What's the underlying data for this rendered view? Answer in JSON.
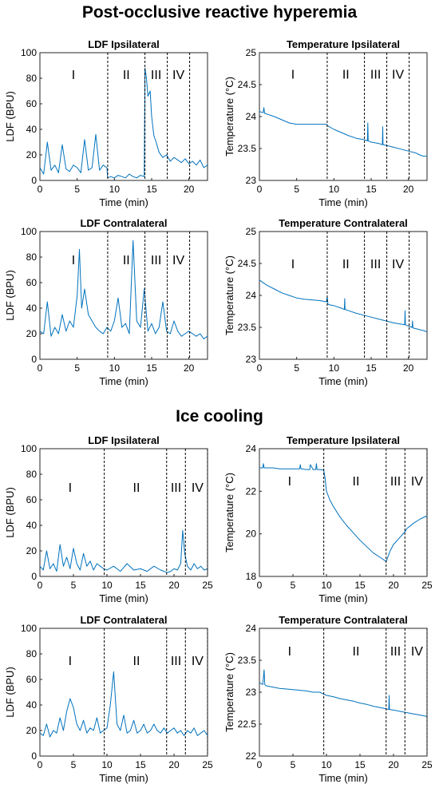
{
  "sections": [
    {
      "title": "Post-occlusive reactive hyperemia"
    },
    {
      "title": "Ice cooling"
    }
  ],
  "colors": {
    "trace": "#0072BD",
    "divider": "#000000",
    "axes": "#262626"
  },
  "chart_data": [
    {
      "type": "line",
      "title": "LDF Ipsilateral",
      "xlabel": "Time (min)",
      "ylabel": "LDF (BPU)",
      "xlim": [
        0,
        22.5
      ],
      "ylim": [
        0,
        100
      ],
      "xticks": [
        0,
        5,
        10,
        15,
        20
      ],
      "yticks": [
        0,
        20,
        40,
        60,
        80,
        100
      ],
      "phase_boundaries": [
        9.1,
        14.1,
        17.1,
        20.1
      ],
      "phase_labels": [
        {
          "text": "I",
          "x": 4.5
        },
        {
          "text": "II",
          "x": 11.6
        },
        {
          "text": "III",
          "x": 15.6
        },
        {
          "text": "IV",
          "x": 18.6
        }
      ],
      "phase_label_y": 83,
      "series": [
        {
          "x": [
            0,
            0.5,
            1,
            1.5,
            2,
            2.5,
            3,
            3.5,
            4,
            4.5,
            5,
            5.5,
            6,
            6.5,
            7,
            7.5,
            8,
            8.5,
            9,
            9.1,
            9.5,
            10,
            10.5,
            11,
            11.5,
            12,
            12.5,
            13,
            13.5,
            14,
            14.1,
            14.3,
            14.5,
            14.8,
            15,
            15.3,
            15.6,
            16,
            16.5,
            17,
            17.5,
            18,
            18.5,
            19,
            19.5,
            20,
            20.5,
            21,
            21.5,
            22,
            22.5
          ],
          "y": [
            10,
            5,
            30,
            8,
            12,
            6,
            28,
            9,
            7,
            12,
            10,
            6,
            32,
            8,
            10,
            36,
            8,
            12,
            10,
            2,
            3,
            2,
            4,
            3,
            2,
            5,
            3,
            2,
            4,
            3,
            88,
            80,
            66,
            70,
            50,
            35,
            30,
            22,
            18,
            20,
            15,
            18,
            16,
            14,
            17,
            13,
            15,
            12,
            16,
            10,
            12
          ]
        }
      ]
    },
    {
      "type": "line",
      "title": "Temperature Ipsilateral",
      "xlabel": "Time (min)",
      "ylabel": "Temperature (°C)",
      "xlim": [
        0,
        22.5
      ],
      "ylim": [
        23,
        25
      ],
      "xticks": [
        0,
        5,
        10,
        15,
        20
      ],
      "yticks": [
        23,
        23.5,
        24,
        24.5,
        25
      ],
      "phase_boundaries": [
        9.1,
        14.1,
        17.1,
        20.1
      ],
      "phase_labels": [
        {
          "text": "I",
          "x": 4.5
        },
        {
          "text": "II",
          "x": 11.6
        },
        {
          "text": "III",
          "x": 15.6
        },
        {
          "text": "IV",
          "x": 18.6
        }
      ],
      "phase_label_y": 24.67,
      "series": [
        {
          "x": [
            0,
            0.5,
            0.6,
            0.7,
            1,
            2,
            3,
            4,
            5,
            6,
            7,
            8,
            9,
            9.1,
            10,
            11,
            12,
            13,
            14,
            14.5,
            14.55,
            14.6,
            15,
            16,
            16.5,
            16.55,
            16.6,
            17,
            18,
            19,
            20,
            21,
            21.5,
            22,
            22.5
          ],
          "y": [
            24.08,
            24.06,
            24.14,
            24.05,
            24.04,
            24.0,
            23.95,
            23.9,
            23.88,
            23.88,
            23.88,
            23.88,
            23.88,
            23.86,
            23.8,
            23.75,
            23.7,
            23.66,
            23.64,
            23.62,
            23.9,
            23.62,
            23.6,
            23.58,
            23.56,
            23.84,
            23.56,
            23.55,
            23.52,
            23.49,
            23.46,
            23.43,
            23.4,
            23.38,
            23.38
          ]
        }
      ]
    },
    {
      "type": "line",
      "title": "LDF Contralateral",
      "xlabel": "Time (min)",
      "ylabel": "LDF (BPU)",
      "xlim": [
        0,
        22.5
      ],
      "ylim": [
        0,
        100
      ],
      "xticks": [
        0,
        5,
        10,
        15,
        20
      ],
      "yticks": [
        0,
        20,
        40,
        60,
        80,
        100
      ],
      "phase_boundaries": [
        9.1,
        14.1,
        17.1,
        20.1
      ],
      "phase_labels": [
        {
          "text": "I",
          "x": 4.5
        },
        {
          "text": "II",
          "x": 11.6
        },
        {
          "text": "III",
          "x": 15.6
        },
        {
          "text": "IV",
          "x": 18.6
        }
      ],
      "phase_label_y": 78,
      "series": [
        {
          "x": [
            0,
            0.5,
            1,
            1.5,
            2,
            2.5,
            3,
            3.5,
            4,
            4.5,
            5,
            5.3,
            5.6,
            6,
            6.5,
            7,
            7.5,
            8,
            8.5,
            9,
            9.5,
            10,
            10.5,
            11,
            11.5,
            12,
            12.5,
            13,
            13.5,
            14,
            14.5,
            15,
            15.5,
            16,
            16.5,
            17,
            17.5,
            18,
            18.5,
            19,
            19.5,
            20,
            20.5,
            21,
            21.5,
            22,
            22.5
          ],
          "y": [
            22,
            20,
            45,
            18,
            25,
            20,
            35,
            22,
            30,
            25,
            50,
            86,
            40,
            55,
            35,
            30,
            25,
            22,
            20,
            25,
            22,
            30,
            48,
            25,
            28,
            20,
            93,
            30,
            25,
            55,
            22,
            28,
            20,
            25,
            45,
            22,
            20,
            30,
            22,
            18,
            20,
            22,
            20,
            18,
            20,
            16,
            18
          ]
        }
      ]
    },
    {
      "type": "line",
      "title": "Temperature Contralateral",
      "xlabel": "Time (min)",
      "ylabel": "Temperature (°C)",
      "xlim": [
        0,
        22.5
      ],
      "ylim": [
        23,
        25
      ],
      "xticks": [
        0,
        5,
        10,
        15,
        20
      ],
      "yticks": [
        23,
        23.5,
        24,
        24.5,
        25
      ],
      "phase_boundaries": [
        9.1,
        14.1,
        17.1,
        20.1
      ],
      "phase_labels": [
        {
          "text": "I",
          "x": 4.5
        },
        {
          "text": "II",
          "x": 11.6
        },
        {
          "text": "III",
          "x": 15.6
        },
        {
          "text": "IV",
          "x": 18.6
        }
      ],
      "phase_label_y": 24.5,
      "series": [
        {
          "x": [
            0,
            1,
            2,
            3,
            4,
            5,
            6,
            7,
            8,
            9,
            9.1,
            9.2,
            9.5,
            10,
            11,
            11.4,
            11.45,
            11.5,
            12,
            13,
            14,
            15,
            16,
            17,
            18,
            19,
            19.5,
            19.55,
            19.6,
            20,
            20.5,
            20.55,
            20.6,
            21,
            22,
            22.5
          ],
          "y": [
            24.24,
            24.16,
            24.1,
            24.04,
            24.0,
            23.96,
            23.94,
            23.93,
            23.92,
            23.9,
            23.98,
            23.86,
            23.85,
            23.84,
            23.8,
            23.78,
            23.95,
            23.78,
            23.76,
            23.72,
            23.69,
            23.66,
            23.63,
            23.6,
            23.57,
            23.55,
            23.54,
            23.76,
            23.54,
            23.52,
            23.5,
            23.6,
            23.49,
            23.48,
            23.45,
            23.43
          ]
        }
      ]
    },
    {
      "type": "line",
      "title": "LDF Ipsilateral",
      "xlabel": "Time (min)",
      "ylabel": "LDF (BPU)",
      "xlim": [
        0,
        25
      ],
      "ylim": [
        0,
        100
      ],
      "xticks": [
        0,
        5,
        10,
        15,
        20,
        25
      ],
      "yticks": [
        0,
        20,
        40,
        60,
        80,
        100
      ],
      "phase_boundaries": [
        9.6,
        18.9,
        21.7,
        25
      ],
      "phase_labels": [
        {
          "text": "I",
          "x": 4.5
        },
        {
          "text": "II",
          "x": 14.4
        },
        {
          "text": "III",
          "x": 20.3
        },
        {
          "text": "IV",
          "x": 23.5
        }
      ],
      "phase_label_y": 70,
      "series": [
        {
          "x": [
            0,
            0.5,
            1,
            1.5,
            2,
            2.5,
            3,
            3.5,
            4,
            4.5,
            5,
            5.5,
            6,
            6.5,
            7,
            7.5,
            8,
            8.5,
            9,
            9.5,
            10,
            11,
            12,
            13,
            14,
            15,
            16,
            17,
            18,
            19,
            19.5,
            20,
            20.5,
            21,
            21.3,
            21.6,
            22,
            22.5,
            23,
            23.5,
            24,
            24.5,
            25
          ],
          "y": [
            8,
            5,
            20,
            6,
            10,
            4,
            25,
            8,
            15,
            6,
            22,
            10,
            5,
            18,
            8,
            12,
            5,
            10,
            8,
            6,
            5,
            8,
            4,
            10,
            5,
            6,
            4,
            8,
            5,
            3,
            4,
            6,
            5,
            10,
            36,
            18,
            8,
            5,
            10,
            6,
            8,
            5,
            6
          ]
        }
      ]
    },
    {
      "type": "line",
      "title": "Temperature Ipsilateral",
      "xlabel": "Time (min)",
      "ylabel": "Temperature (°C)",
      "xlim": [
        0,
        25
      ],
      "ylim": [
        18,
        24
      ],
      "xticks": [
        0,
        5,
        10,
        15,
        20,
        25
      ],
      "yticks": [
        18,
        20,
        22,
        24
      ],
      "phase_boundaries": [
        9.6,
        18.9,
        21.7,
        25
      ],
      "phase_labels": [
        {
          "text": "I",
          "x": 4.5
        },
        {
          "text": "II",
          "x": 14.4
        },
        {
          "text": "III",
          "x": 20.3
        },
        {
          "text": "IV",
          "x": 23.5
        }
      ],
      "phase_label_y": 22.5,
      "series": [
        {
          "x": [
            0,
            0.5,
            0.6,
            0.7,
            1,
            2,
            3,
            4,
            5,
            6,
            6.1,
            6.2,
            7,
            7.5,
            7.6,
            8,
            8.4,
            8.5,
            8.6,
            9,
            9.6,
            9.8,
            10,
            10.5,
            11,
            12,
            13,
            14,
            15,
            16,
            17,
            18,
            18.9,
            19.2,
            19.5,
            20,
            21,
            21.7,
            22,
            23,
            24,
            25
          ],
          "y": [
            23.1,
            23.1,
            23.3,
            23.1,
            23.1,
            23.1,
            23.05,
            23.05,
            23.05,
            23.05,
            23.25,
            23.05,
            23.02,
            23.02,
            23.25,
            23.02,
            23.02,
            23.3,
            23.02,
            23.02,
            23.0,
            22.6,
            22.0,
            21.6,
            21.3,
            20.8,
            20.4,
            20.05,
            19.7,
            19.4,
            19.1,
            18.9,
            18.7,
            18.95,
            19.2,
            19.5,
            19.85,
            20.1,
            20.25,
            20.5,
            20.7,
            20.85
          ]
        }
      ]
    },
    {
      "type": "line",
      "title": "LDF Contralateral",
      "xlabel": "Time (min)",
      "ylabel": "LDF (BPU)",
      "xlim": [
        0,
        25
      ],
      "ylim": [
        0,
        100
      ],
      "xticks": [
        0,
        5,
        10,
        15,
        20,
        25
      ],
      "yticks": [
        0,
        20,
        40,
        60,
        80,
        100
      ],
      "phase_boundaries": [
        9.6,
        18.9,
        21.7,
        25
      ],
      "phase_labels": [
        {
          "text": "I",
          "x": 4.5
        },
        {
          "text": "II",
          "x": 14.4
        },
        {
          "text": "III",
          "x": 20.3
        },
        {
          "text": "IV",
          "x": 23.5
        }
      ],
      "phase_label_y": 75,
      "series": [
        {
          "x": [
            0,
            0.5,
            1,
            1.5,
            2,
            2.5,
            3,
            3.5,
            4,
            4.5,
            5,
            5.5,
            6,
            6.5,
            7,
            7.5,
            8,
            8.5,
            9,
            9.5,
            10,
            10.5,
            11,
            11.5,
            12,
            12.5,
            13,
            13.5,
            14,
            14.5,
            15,
            15.5,
            16,
            16.5,
            17,
            17.5,
            18,
            18.5,
            19,
            19.5,
            20,
            20.5,
            21,
            21.5,
            22,
            22.5,
            23,
            23.5,
            24,
            24.5,
            25
          ],
          "y": [
            18,
            16,
            25,
            15,
            20,
            18,
            30,
            20,
            35,
            45,
            38,
            25,
            20,
            28,
            18,
            22,
            20,
            30,
            18,
            20,
            22,
            40,
            66,
            25,
            20,
            32,
            18,
            20,
            28,
            18,
            20,
            25,
            18,
            20,
            25,
            20,
            18,
            22,
            18,
            20,
            22,
            18,
            20,
            16,
            20,
            18,
            22,
            16,
            18,
            20,
            16
          ]
        }
      ]
    },
    {
      "type": "line",
      "title": "Temperature Contralateral",
      "xlabel": "Time (min)",
      "ylabel": "Temperature (°C)",
      "xlim": [
        0,
        25
      ],
      "ylim": [
        22,
        24
      ],
      "xticks": [
        0,
        5,
        10,
        15,
        20,
        25
      ],
      "yticks": [
        22,
        22.5,
        23,
        23.5,
        24
      ],
      "phase_boundaries": [
        9.6,
        18.9,
        21.7,
        25
      ],
      "phase_labels": [
        {
          "text": "I",
          "x": 4.5
        },
        {
          "text": "II",
          "x": 14.4
        },
        {
          "text": "III",
          "x": 20.3
        },
        {
          "text": "IV",
          "x": 23.5
        }
      ],
      "phase_label_y": 23.65,
      "series": [
        {
          "x": [
            0,
            0.5,
            0.7,
            0.8,
            1,
            2,
            3,
            4,
            5,
            6,
            7,
            8,
            9,
            9.6,
            10,
            11,
            12,
            13,
            14,
            15,
            16,
            17,
            18,
            18.9,
            19.3,
            19.35,
            19.4,
            20,
            21,
            22,
            23,
            24,
            25
          ],
          "y": [
            23.15,
            23.12,
            23.35,
            23.12,
            23.1,
            23.08,
            23.06,
            23.05,
            23.04,
            23.03,
            23.02,
            23.0,
            23.0,
            22.97,
            22.95,
            22.93,
            22.9,
            22.88,
            22.86,
            22.83,
            22.81,
            22.78,
            22.76,
            22.74,
            22.73,
            22.95,
            22.73,
            22.72,
            22.7,
            22.68,
            22.66,
            22.64,
            22.62
          ]
        }
      ]
    }
  ]
}
